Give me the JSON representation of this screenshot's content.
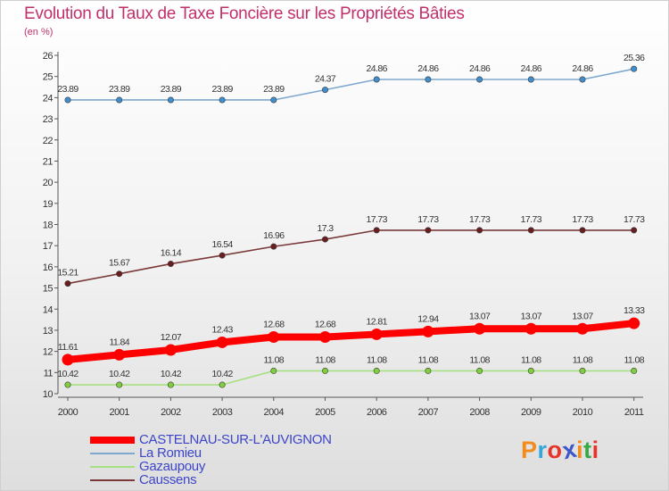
{
  "title": "Evolution du Taux de Taxe Foncière sur les Propriétés Bâties",
  "unit_label": "(en %)",
  "logo": {
    "text": "Proxiti",
    "letters": [
      {
        "ch": "P",
        "color": "#f28c1c"
      },
      {
        "ch": "r",
        "color": "#38a6d9"
      },
      {
        "ch": "o",
        "color": "#e8332a"
      },
      {
        "ch": "x",
        "color": "#3d56c9"
      },
      {
        "ch": "i",
        "color": "#f28c1c"
      },
      {
        "ch": "t",
        "color": "#3aa845"
      },
      {
        "ch": "i",
        "color": "#e8332a"
      }
    ]
  },
  "chart_data": {
    "type": "line",
    "title": "Evolution du Taux de Taxe Foncière sur les Propriétés Bâties",
    "ylabel": "(en %)",
    "xlabel": "",
    "ylim": [
      10,
      26
    ],
    "yticks": [
      10,
      11,
      12,
      13,
      14,
      15,
      16,
      17,
      18,
      19,
      20,
      21,
      22,
      23,
      24,
      25,
      26
    ],
    "categories": [
      "2000",
      "2001",
      "2002",
      "2003",
      "2004",
      "2005",
      "2006",
      "2007",
      "2008",
      "2009",
      "2010",
      "2011"
    ],
    "grid": false,
    "legend_position": "bottom-left",
    "series": [
      {
        "name": "CASTELNAU-SUR-L'AUVIGNON",
        "color": "#ff0000",
        "marker_color": "#ff0000",
        "values": [
          11.61,
          11.84,
          12.07,
          12.43,
          12.68,
          12.68,
          12.81,
          12.94,
          13.07,
          13.07,
          13.07,
          13.33
        ],
        "labels": [
          "11.61",
          "11.84",
          "12.07",
          "12.43",
          "12.68",
          "12.68",
          "12.81",
          "12.94",
          "13.07",
          "13.07",
          "13.07",
          "13.33"
        ],
        "emphasis": true
      },
      {
        "name": "La Romieu",
        "color": "#7ea8cf",
        "marker_color": "#3f8fcf",
        "values": [
          23.89,
          23.89,
          23.89,
          23.89,
          23.89,
          24.37,
          24.86,
          24.86,
          24.86,
          24.86,
          24.86,
          25.36
        ],
        "labels": [
          "23.89",
          "23.89",
          "23.89",
          "23.89",
          "23.89",
          "24.37",
          "24.86",
          "24.86",
          "24.86",
          "24.86",
          "24.86",
          "25.36"
        ],
        "emphasis": false
      },
      {
        "name": "Gazaupouy",
        "color": "#a7e083",
        "marker_color": "#7fce3d",
        "values": [
          10.42,
          10.42,
          10.42,
          10.42,
          11.08,
          11.08,
          11.08,
          11.08,
          11.08,
          11.08,
          11.08,
          11.08
        ],
        "labels": [
          "10.42",
          "10.42",
          "10.42",
          "10.42",
          "11.08",
          "11.08",
          "11.08",
          "11.08",
          "11.08",
          "11.08",
          "11.08",
          "11.08"
        ],
        "emphasis": false
      },
      {
        "name": "Caussens",
        "color": "#7a3a3a",
        "marker_color": "#6b1e1e",
        "values": [
          15.21,
          15.67,
          16.14,
          16.54,
          16.96,
          17.3,
          17.73,
          17.73,
          17.73,
          17.73,
          17.73,
          17.73
        ],
        "labels": [
          "15.21",
          "15.67",
          "16.14",
          "16.54",
          "16.96",
          "17.3",
          "17.73",
          "17.73",
          "17.73",
          "17.73",
          "17.73",
          "17.73"
        ],
        "emphasis": false
      }
    ]
  }
}
